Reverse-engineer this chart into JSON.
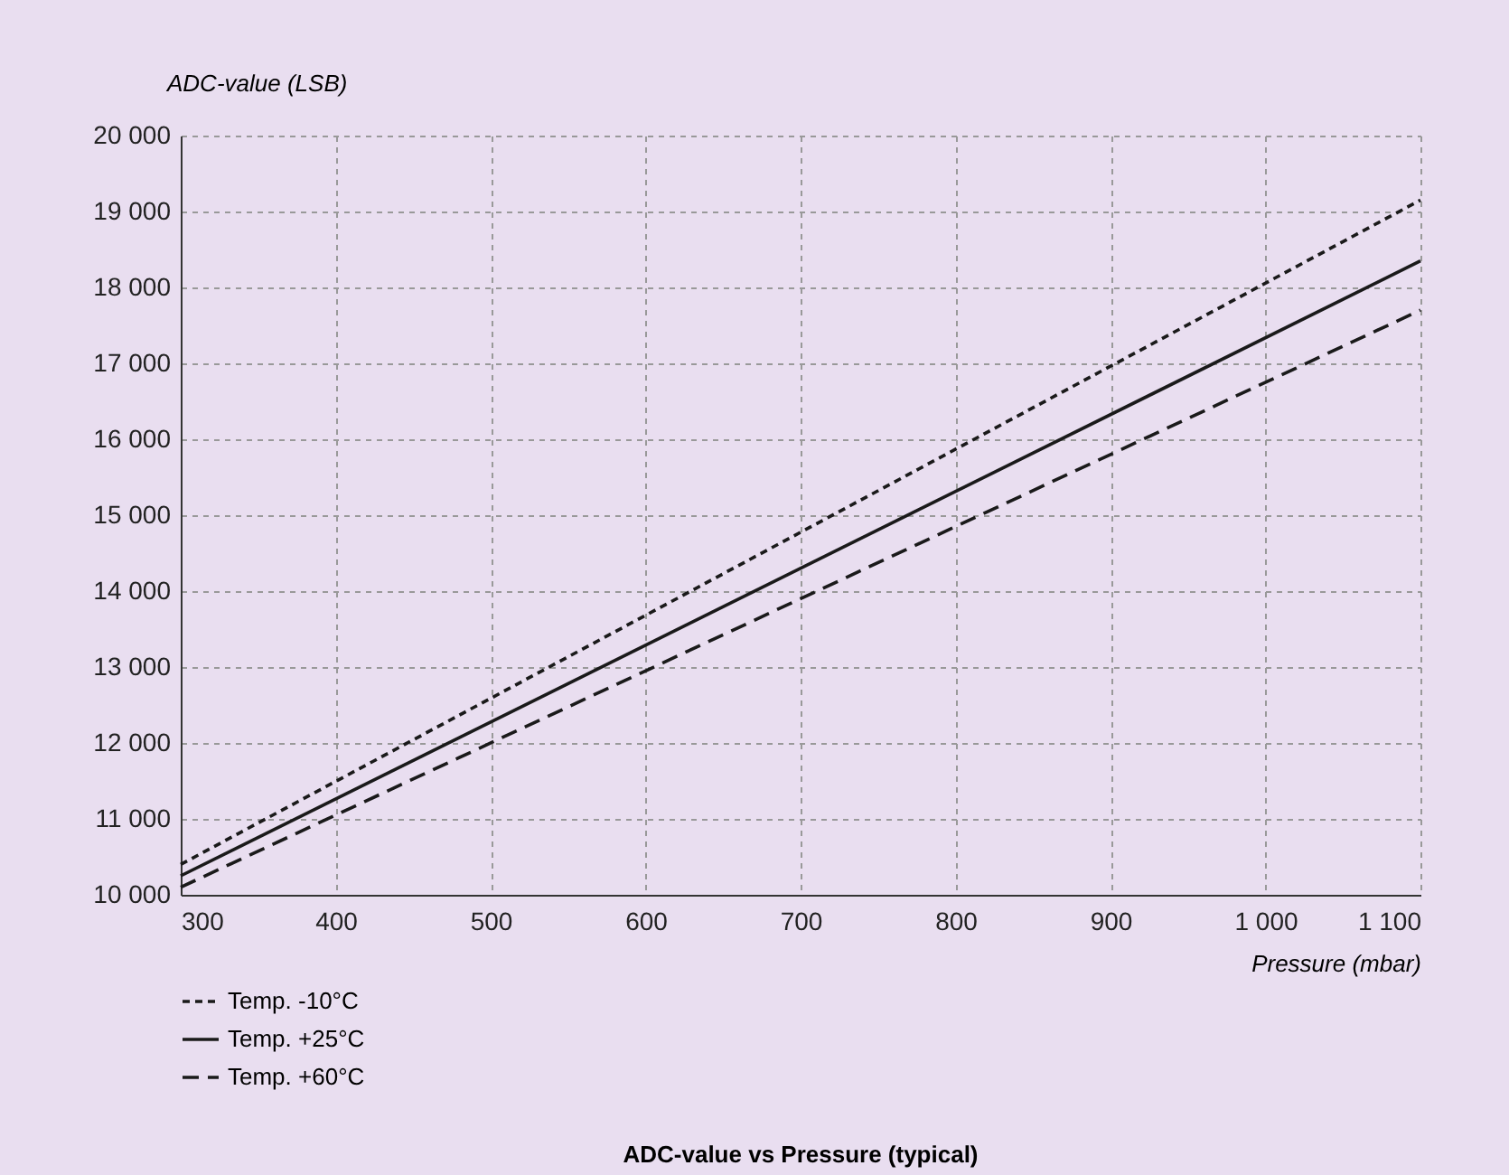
{
  "chart_data": {
    "type": "line",
    "title": "ADC-value vs Pressure (typical)",
    "xlabel": "Pressure (mbar)",
    "ylabel": "ADC-value (LSB)",
    "x": [
      300,
      1100
    ],
    "series": [
      {
        "name": "Temp. -10°C",
        "color": "#1a1a1a",
        "line_style": "dotted",
        "values": [
          10400,
          19150
        ]
      },
      {
        "name": "Temp. +25°C",
        "color": "#1a1a1a",
        "line_style": "solid",
        "values": [
          10250,
          18350
        ]
      },
      {
        "name": "Temp. +60°C",
        "color": "#1a1a1a",
        "line_style": "dashed",
        "values": [
          10100,
          17700
        ]
      }
    ],
    "xlim": [
      300,
      1100
    ],
    "xticks": [
      300,
      400,
      500,
      600,
      700,
      800,
      900,
      {
        "value": 1000,
        "label": "1 000"
      },
      {
        "value": 1100,
        "label": "1 100"
      }
    ],
    "ylim": [
      10000,
      20000
    ],
    "yticks": [
      {
        "value": 10000,
        "label": "10 000"
      },
      {
        "value": 11000,
        "label": "11 000"
      },
      {
        "value": 12000,
        "label": "12 000"
      },
      {
        "value": 13000,
        "label": "13 000"
      },
      {
        "value": 14000,
        "label": "14 000"
      },
      {
        "value": 15000,
        "label": "15 000"
      },
      {
        "value": 16000,
        "label": "16 000"
      },
      {
        "value": 17000,
        "label": "17 000"
      },
      {
        "value": 18000,
        "label": "18 000"
      },
      {
        "value": 19000,
        "label": "19 000"
      },
      {
        "value": 20000,
        "label": "20 000"
      }
    ],
    "grid": true,
    "legend": "bottom left"
  }
}
